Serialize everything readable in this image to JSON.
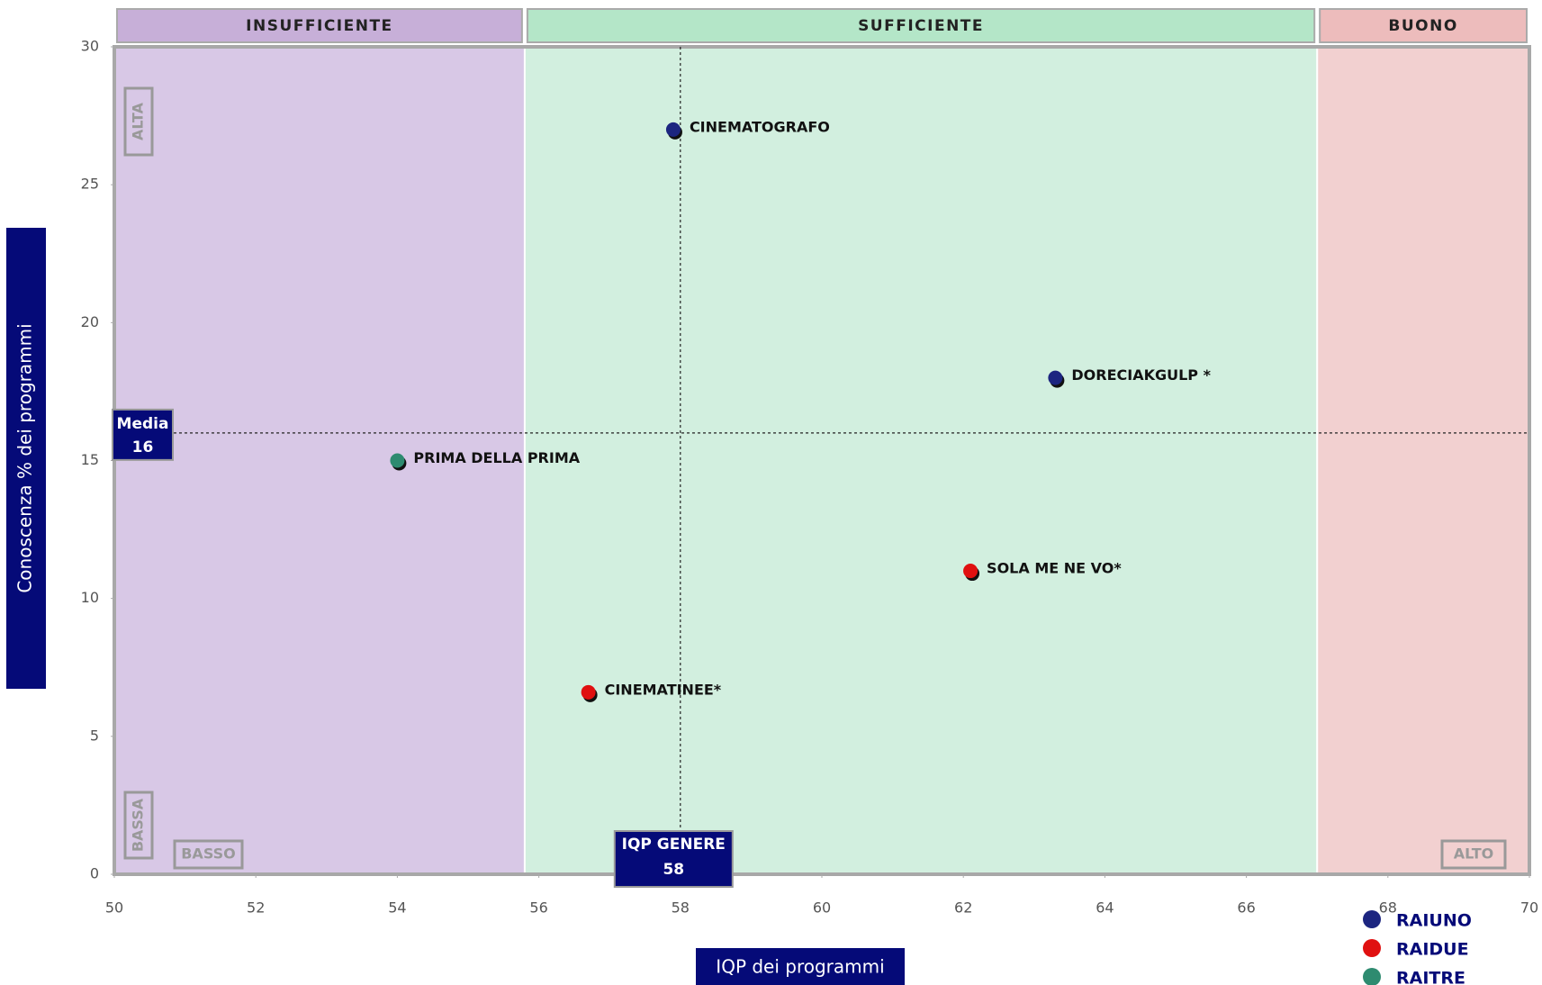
{
  "chart_data": {
    "type": "scatter",
    "xlabel": "IQP dei programmi",
    "ylabel": "Conoscenza % dei programmi",
    "xlim": [
      50,
      70
    ],
    "ylim": [
      0,
      30
    ],
    "xticks": [
      50,
      52,
      54,
      56,
      58,
      60,
      62,
      64,
      66,
      68,
      70
    ],
    "yticks": [
      0,
      5,
      10,
      15,
      20,
      25,
      30
    ],
    "legend": "bottom-right",
    "zones": [
      {
        "label": "INSUFFICIENTE",
        "from": 50,
        "to": 55.8,
        "color": "#d8c8e6",
        "header_color": "#c7afd8"
      },
      {
        "label": "SUFFICIENTE",
        "from": 55.8,
        "to": 67,
        "color": "#d2efdf",
        "header_color": "#b4e6c8"
      },
      {
        "label": "BUONO",
        "from": 67,
        "to": 70,
        "color": "#f2d0d0",
        "header_color": "#edbcbc"
      }
    ],
    "reference_lines": [
      {
        "axis": "y",
        "value": 16,
        "label": "Media"
      },
      {
        "axis": "x",
        "value": 58,
        "label": "IQP GENERE"
      }
    ],
    "annotations": {
      "top_left": "ALTA",
      "bottom_left": "BASSA",
      "left_bottom": "BASSO",
      "right_bottom": "ALTO"
    },
    "series": [
      {
        "name": "RAIUNO",
        "color": "#1c2580",
        "x": [
          57.9,
          63.3
        ],
        "values": [
          27,
          18
        ],
        "labels": [
          "CINEMATOGRAFO",
          "DORECIAKGULP *"
        ]
      },
      {
        "name": "RAIDUE",
        "color": "#e01010",
        "x": [
          62.1,
          56.7
        ],
        "values": [
          11,
          6.6
        ],
        "labels": [
          "SOLA ME NE VO*",
          "CINEMATINEE*"
        ]
      },
      {
        "name": "RAITRE",
        "color": "#2e8b70",
        "x": [
          54
        ],
        "values": [
          15
        ],
        "labels": [
          "PRIMA DELLA PRIMA"
        ]
      }
    ]
  }
}
